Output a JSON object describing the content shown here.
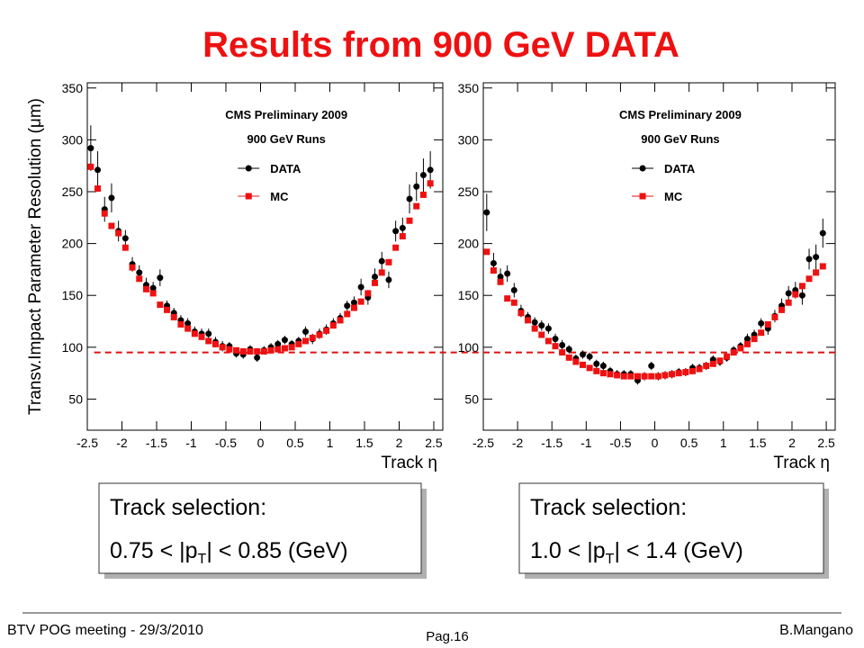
{
  "slide": {
    "title": "Results from 900 GeV DATA",
    "boxes": [
      {
        "heading": "Track selection:",
        "line": [
          "0.75 < |p",
          "T",
          "| < 0.85 (GeV)"
        ]
      },
      {
        "heading": "Track selection:",
        "line": [
          "1.0 < |p",
          "T",
          "| < 1.4 (GeV)"
        ]
      }
    ],
    "footer": {
      "left": "BTV POG meeting - 29/3/2010",
      "center": "Pag.16",
      "right": "B.Mangano"
    }
  },
  "chart_data": [
    {
      "type": "scatter",
      "ylabel": "Transv.Impact Parameter Resolution (μm)",
      "xlabel": "Track η",
      "annotations": [
        "CMS Preliminary 2009",
        "900 GeV Runs"
      ],
      "xlim": [
        -2.5,
        2.63
      ],
      "ylim": [
        20,
        355
      ],
      "xticks": [
        -2.5,
        -2,
        -1.5,
        -1,
        -0.5,
        0,
        0.5,
        1,
        1.5,
        2,
        2.5
      ],
      "yticks": [
        50,
        100,
        150,
        200,
        250,
        300,
        350
      ],
      "hline": 95,
      "hline_color": "#dd1111",
      "x": [
        -2.45,
        -2.35,
        -2.25,
        -2.15,
        -2.05,
        -1.95,
        -1.85,
        -1.75,
        -1.65,
        -1.55,
        -1.45,
        -1.35,
        -1.25,
        -1.15,
        -1.05,
        -0.95,
        -0.85,
        -0.75,
        -0.65,
        -0.55,
        -0.45,
        -0.35,
        -0.25,
        -0.15,
        -0.05,
        0.05,
        0.15,
        0.25,
        0.35,
        0.45,
        0.55,
        0.65,
        0.75,
        0.85,
        0.95,
        1.05,
        1.15,
        1.25,
        1.35,
        1.45,
        1.55,
        1.65,
        1.75,
        1.85,
        1.95,
        2.05,
        2.15,
        2.25,
        2.35,
        2.45
      ],
      "series": [
        {
          "name": "DATA",
          "color": "#000000",
          "marker": "circle",
          "values": [
            292,
            271,
            233,
            244,
            212,
            205,
            180,
            172,
            160,
            157,
            167,
            140,
            133,
            126,
            123,
            115,
            113,
            113,
            105,
            101,
            101,
            94,
            93,
            98,
            90,
            97,
            100,
            103,
            107,
            103,
            106,
            115,
            108,
            113,
            117,
            123,
            128,
            140,
            143,
            158,
            148,
            168,
            183,
            165,
            212,
            215,
            243,
            255,
            266,
            271
          ],
          "errors": [
            22,
            18,
            12,
            14,
            10,
            8,
            7,
            7,
            7,
            6,
            8,
            5,
            5,
            5,
            5,
            5,
            5,
            5,
            5,
            5,
            4,
            4,
            4,
            4,
            4,
            4,
            4,
            4,
            4,
            4,
            4,
            5,
            5,
            5,
            5,
            5,
            5,
            5,
            6,
            8,
            7,
            8,
            9,
            8,
            10,
            10,
            14,
            14,
            16,
            18
          ]
        },
        {
          "name": "MC",
          "color": "#ee1111",
          "marker": "square",
          "values": [
            274,
            253,
            229,
            217,
            210,
            196,
            177,
            166,
            156,
            152,
            141,
            136,
            129,
            122,
            118,
            113,
            110,
            106,
            103,
            100,
            98,
            97,
            96,
            96,
            96,
            96,
            97,
            98,
            99,
            100,
            103,
            106,
            109,
            112,
            116,
            121,
            126,
            132,
            138,
            144,
            152,
            162,
            172,
            182,
            196,
            207,
            222,
            236,
            247,
            258
          ]
        }
      ]
    },
    {
      "type": "scatter",
      "xlabel": "Track η",
      "annotations": [
        "CMS Preliminary 2009",
        "900 GeV Runs"
      ],
      "xlim": [
        -2.5,
        2.63
      ],
      "ylim": [
        20,
        355
      ],
      "xticks": [
        -2.5,
        -2,
        -1.5,
        -1,
        -0.5,
        0,
        0.5,
        1,
        1.5,
        2,
        2.5
      ],
      "yticks": [
        50,
        100,
        150,
        200,
        250,
        300,
        350
      ],
      "hline": 95,
      "hline_color": "#dd1111",
      "x": [
        -2.45,
        -2.35,
        -2.25,
        -2.15,
        -2.05,
        -1.95,
        -1.85,
        -1.75,
        -1.65,
        -1.55,
        -1.45,
        -1.35,
        -1.25,
        -1.15,
        -1.05,
        -0.95,
        -0.85,
        -0.75,
        -0.65,
        -0.55,
        -0.45,
        -0.35,
        -0.25,
        -0.15,
        -0.05,
        0.05,
        0.15,
        0.25,
        0.35,
        0.45,
        0.55,
        0.65,
        0.75,
        0.85,
        0.95,
        1.05,
        1.15,
        1.25,
        1.35,
        1.45,
        1.55,
        1.65,
        1.75,
        1.85,
        1.95,
        2.05,
        2.15,
        2.25,
        2.35,
        2.45
      ],
      "series": [
        {
          "name": "DATA",
          "color": "#000000",
          "marker": "circle",
          "values": [
            230,
            181,
            168,
            171,
            155,
            135,
            129,
            124,
            121,
            118,
            108,
            102,
            98,
            89,
            93,
            91,
            84,
            82,
            77,
            74,
            74,
            74,
            68,
            72,
            82,
            72,
            73,
            74,
            76,
            76,
            80,
            80,
            82,
            88,
            86,
            90,
            97,
            101,
            108,
            112,
            123,
            118,
            130,
            140,
            152,
            155,
            150,
            185,
            187,
            210
          ],
          "errors": [
            18,
            10,
            8,
            8,
            7,
            6,
            5,
            5,
            5,
            5,
            5,
            5,
            4,
            4,
            4,
            4,
            4,
            4,
            4,
            4,
            4,
            4,
            4,
            4,
            4,
            4,
            4,
            4,
            4,
            4,
            4,
            4,
            4,
            4,
            4,
            4,
            4,
            4,
            5,
            5,
            5,
            6,
            6,
            7,
            7,
            8,
            9,
            10,
            12,
            14
          ]
        },
        {
          "name": "MC",
          "color": "#ee1111",
          "marker": "square",
          "values": [
            192,
            174,
            163,
            147,
            143,
            133,
            126,
            118,
            112,
            106,
            101,
            95,
            90,
            86,
            83,
            80,
            77,
            75,
            74,
            73,
            72,
            72,
            72,
            72,
            72,
            72,
            73,
            74,
            75,
            76,
            77,
            79,
            82,
            84,
            87,
            91,
            95,
            99,
            103,
            108,
            114,
            122,
            129,
            136,
            143,
            151,
            159,
            166,
            172,
            178
          ]
        }
      ]
    }
  ]
}
